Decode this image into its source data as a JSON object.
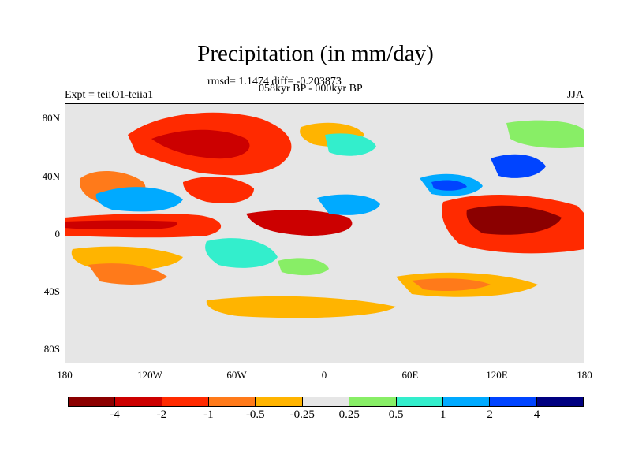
{
  "title": "Precipitation (in mm/day)",
  "stats": "rmsd= 1.1474 diff= -0.203873",
  "period": "058kyr BP - 000kyr BP",
  "left_tag": "Expt = teiiO1-teiia1",
  "right_tag": "JJA",
  "lat_labels": [
    "80N",
    "40N",
    "0",
    "40S",
    "80S"
  ],
  "lon_labels": [
    "180",
    "120W",
    "60W",
    "0",
    "60E",
    "120E",
    "180"
  ],
  "colorbar": {
    "colors": [
      "#8b0000",
      "#cc0000",
      "#ff2a00",
      "#ff7a1a",
      "#ffb400",
      "#e6e6e6",
      "#88ee66",
      "#33eecc",
      "#00aaff",
      "#0044ff",
      "#000080"
    ],
    "labels": [
      "-4",
      "-2",
      "-1",
      "-0.5",
      "-0.25",
      "0.25",
      "0.5",
      "1",
      "2",
      "4"
    ]
  }
}
